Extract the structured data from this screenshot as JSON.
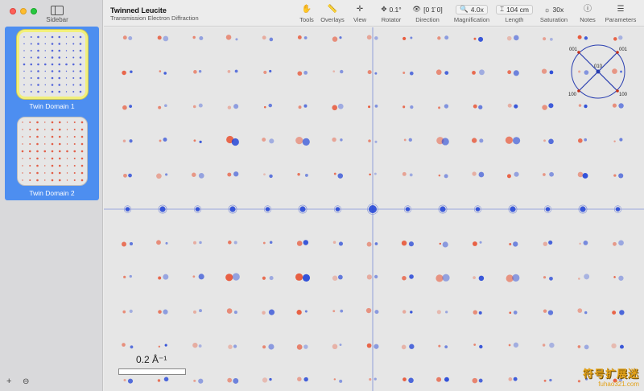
{
  "window": {
    "title": "Twinned Leucite",
    "subtitle": "Transmission Electron Diffraction"
  },
  "sidebar": {
    "toggle_label": "Sidebar",
    "domains": [
      {
        "label": "Twin Domain 1",
        "selected": true,
        "dot_color": "#3b4fd6"
      },
      {
        "label": "Twin Domain 2",
        "selected": false,
        "dot_color": "#e0452a"
      }
    ],
    "add_symbol": "+",
    "remove_symbol": "⊖"
  },
  "toolbar": {
    "tools": {
      "label": "Tools",
      "icon": "hand-icon"
    },
    "overlays": {
      "label": "Overlays",
      "icon": "ruler-icon"
    },
    "view": {
      "label": "View",
      "icon": "crosshair-icon"
    },
    "rotator": {
      "label": "Rotator",
      "value": "0.1°",
      "icon": "rotate-icon"
    },
    "direction": {
      "label": "Direction",
      "value": "[0 1̄ 0]",
      "icon": "eye-icon"
    },
    "magnification": {
      "label": "Magnification",
      "value": "4.0x",
      "icon": "magnifier-icon"
    },
    "length": {
      "label": "Length",
      "value": "104 cm",
      "icon": "length-icon"
    },
    "saturation": {
      "label": "Saturation",
      "value": "30x",
      "icon": "sun-icon"
    },
    "notes": {
      "label": "Notes",
      "icon": "info-icon"
    },
    "parameters": {
      "label": "Parameters",
      "icon": "sliders-icon"
    }
  },
  "canvas": {
    "scale_label": "0.2 Å⁻¹",
    "domain_colors": {
      "domain1": "#1c3fd6",
      "domain2": "#e8401c"
    },
    "orientation_labels": {
      "top_left": "001",
      "top_right": "001",
      "bottom_left": "100",
      "bottom_right": "100",
      "center": "010"
    }
  },
  "watermark": {
    "text": "符号扩展迷",
    "sub": "fuhao321.com"
  }
}
